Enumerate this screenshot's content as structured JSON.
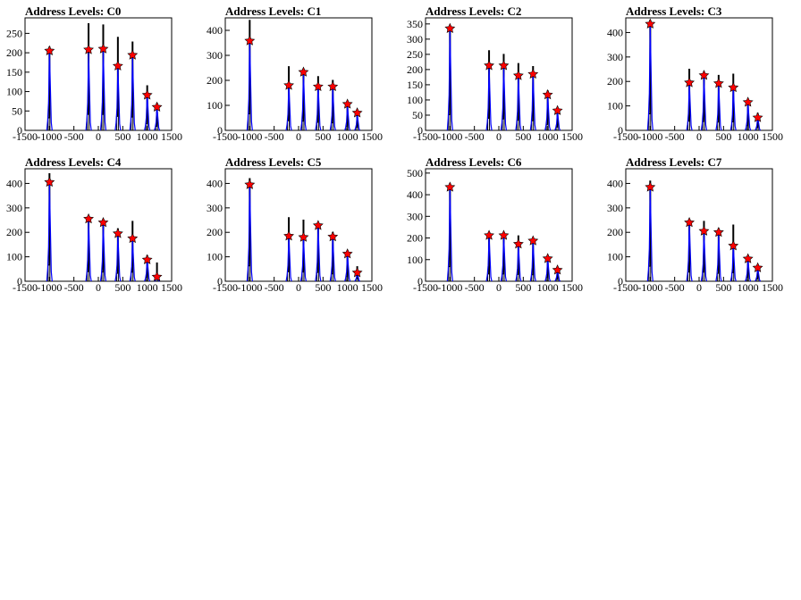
{
  "colors": {
    "background": "#ffffff",
    "frame": "#000000",
    "raw_line": "#000000",
    "fit_line": "#0000ff",
    "marker": "#ff0000"
  },
  "x_ticks": [
    "-1500",
    "-1000",
    "-500",
    "0",
    "500",
    "1000",
    "1500"
  ],
  "chart_data": [
    {
      "type": "histogram",
      "title": "Address Levels: C0",
      "xlim": [
        -1500,
        1500
      ],
      "ylim": [
        0,
        290
      ],
      "y_ticks": [
        0,
        50,
        100,
        150,
        200,
        250
      ],
      "peaks": [
        {
          "x": -1000,
          "raw": 215,
          "fit": 205,
          "marker": 205
        },
        {
          "x": -200,
          "raw": 275,
          "fit": 200,
          "marker": 208
        },
        {
          "x": 100,
          "raw": 272,
          "fit": 210,
          "marker": 210
        },
        {
          "x": 400,
          "raw": 240,
          "fit": 165,
          "marker": 166
        },
        {
          "x": 700,
          "raw": 228,
          "fit": 190,
          "marker": 194
        },
        {
          "x": 1000,
          "raw": 115,
          "fit": 95,
          "marker": 91
        },
        {
          "x": 1200,
          "raw": 70,
          "fit": 60,
          "marker": 60
        }
      ]
    },
    {
      "type": "histogram",
      "title": "Address Levels: C1",
      "xlim": [
        -1500,
        1500
      ],
      "ylim": [
        0,
        450
      ],
      "y_ticks": [
        0,
        100,
        200,
        300,
        400
      ],
      "peaks": [
        {
          "x": -1000,
          "raw": 440,
          "fit": 360,
          "marker": 358
        },
        {
          "x": -200,
          "raw": 255,
          "fit": 185,
          "marker": 180
        },
        {
          "x": 100,
          "raw": 245,
          "fit": 230,
          "marker": 233
        },
        {
          "x": 400,
          "raw": 215,
          "fit": 180,
          "marker": 175
        },
        {
          "x": 700,
          "raw": 200,
          "fit": 170,
          "marker": 175
        },
        {
          "x": 1000,
          "raw": 110,
          "fit": 100,
          "marker": 105
        },
        {
          "x": 1200,
          "raw": 75,
          "fit": 65,
          "marker": 70
        }
      ]
    },
    {
      "type": "histogram",
      "title": "Address Levels: C2",
      "xlim": [
        -1500,
        1500
      ],
      "ylim": [
        0,
        370
      ],
      "y_ticks": [
        0,
        50,
        100,
        150,
        200,
        250,
        300,
        350
      ],
      "peaks": [
        {
          "x": -1000,
          "raw": 345,
          "fit": 330,
          "marker": 335
        },
        {
          "x": -200,
          "raw": 262,
          "fit": 210,
          "marker": 213
        },
        {
          "x": 100,
          "raw": 250,
          "fit": 210,
          "marker": 213
        },
        {
          "x": 400,
          "raw": 220,
          "fit": 180,
          "marker": 180
        },
        {
          "x": 700,
          "raw": 210,
          "fit": 185,
          "marker": 185
        },
        {
          "x": 1000,
          "raw": 130,
          "fit": 115,
          "marker": 117
        },
        {
          "x": 1200,
          "raw": 70,
          "fit": 62,
          "marker": 65
        }
      ]
    },
    {
      "type": "histogram",
      "title": "Address Levels: C3",
      "xlim": [
        -1500,
        1500
      ],
      "ylim": [
        0,
        460
      ],
      "y_ticks": [
        0,
        100,
        200,
        300,
        400
      ],
      "peaks": [
        {
          "x": -1000,
          "raw": 450,
          "fit": 430,
          "marker": 435
        },
        {
          "x": -200,
          "raw": 250,
          "fit": 195,
          "marker": 195
        },
        {
          "x": 100,
          "raw": 240,
          "fit": 220,
          "marker": 225
        },
        {
          "x": 400,
          "raw": 225,
          "fit": 190,
          "marker": 192
        },
        {
          "x": 700,
          "raw": 230,
          "fit": 175,
          "marker": 175
        },
        {
          "x": 1000,
          "raw": 125,
          "fit": 110,
          "marker": 115
        },
        {
          "x": 1200,
          "raw": 70,
          "fit": 55,
          "marker": 52
        }
      ]
    },
    {
      "type": "histogram",
      "title": "Address Levels: C4",
      "xlim": [
        -1500,
        1500
      ],
      "ylim": [
        0,
        460
      ],
      "y_ticks": [
        0,
        100,
        200,
        300,
        400
      ],
      "peaks": [
        {
          "x": -1000,
          "raw": 440,
          "fit": 400,
          "marker": 405
        },
        {
          "x": -200,
          "raw": 262,
          "fit": 250,
          "marker": 255
        },
        {
          "x": 100,
          "raw": 250,
          "fit": 235,
          "marker": 240
        },
        {
          "x": 400,
          "raw": 215,
          "fit": 190,
          "marker": 195
        },
        {
          "x": 700,
          "raw": 245,
          "fit": 170,
          "marker": 175
        },
        {
          "x": 1000,
          "raw": 105,
          "fit": 90,
          "marker": 88
        },
        {
          "x": 1200,
          "raw": 75,
          "fit": 20,
          "marker": 18
        }
      ]
    },
    {
      "type": "histogram",
      "title": "Address Levels: C5",
      "xlim": [
        -1500,
        1500
      ],
      "ylim": [
        0,
        460
      ],
      "y_ticks": [
        0,
        100,
        200,
        300,
        400
      ],
      "peaks": [
        {
          "x": -1000,
          "raw": 420,
          "fit": 395,
          "marker": 395
        },
        {
          "x": -200,
          "raw": 260,
          "fit": 185,
          "marker": 185
        },
        {
          "x": 100,
          "raw": 250,
          "fit": 180,
          "marker": 180
        },
        {
          "x": 400,
          "raw": 240,
          "fit": 225,
          "marker": 228
        },
        {
          "x": 700,
          "raw": 200,
          "fit": 180,
          "marker": 182
        },
        {
          "x": 1000,
          "raw": 125,
          "fit": 110,
          "marker": 112
        },
        {
          "x": 1200,
          "raw": 60,
          "fit": 35,
          "marker": 35
        }
      ]
    },
    {
      "type": "histogram",
      "title": "Address Levels: C6",
      "xlim": [
        -1500,
        1500
      ],
      "ylim": [
        0,
        520
      ],
      "y_ticks": [
        0,
        100,
        200,
        300,
        400,
        500
      ],
      "peaks": [
        {
          "x": -1000,
          "raw": 450,
          "fit": 430,
          "marker": 435
        },
        {
          "x": -200,
          "raw": 225,
          "fit": 210,
          "marker": 212
        },
        {
          "x": 100,
          "raw": 225,
          "fit": 210,
          "marker": 212
        },
        {
          "x": 400,
          "raw": 210,
          "fit": 170,
          "marker": 172
        },
        {
          "x": 700,
          "raw": 200,
          "fit": 185,
          "marker": 187
        },
        {
          "x": 1000,
          "raw": 115,
          "fit": 105,
          "marker": 105
        },
        {
          "x": 1200,
          "raw": 60,
          "fit": 55,
          "marker": 52
        }
      ]
    },
    {
      "type": "histogram",
      "title": "Address Levels: C7",
      "xlim": [
        -1500,
        1500
      ],
      "ylim": [
        0,
        460
      ],
      "y_ticks": [
        0,
        100,
        200,
        300,
        400
      ],
      "peaks": [
        {
          "x": -1000,
          "raw": 410,
          "fit": 380,
          "marker": 385
        },
        {
          "x": -200,
          "raw": 250,
          "fit": 240,
          "marker": 240
        },
        {
          "x": 100,
          "raw": 245,
          "fit": 200,
          "marker": 205
        },
        {
          "x": 400,
          "raw": 215,
          "fit": 195,
          "marker": 200
        },
        {
          "x": 700,
          "raw": 230,
          "fit": 145,
          "marker": 145
        },
        {
          "x": 1000,
          "raw": 105,
          "fit": 90,
          "marker": 92
        },
        {
          "x": 1200,
          "raw": 65,
          "fit": 55,
          "marker": 55
        }
      ]
    }
  ]
}
